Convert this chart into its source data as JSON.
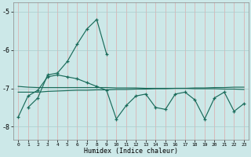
{
  "xlabel": "Humidex (Indice chaleur)",
  "bg_color": "#cce8e8",
  "grid_color": "#aacccc",
  "line_color": "#1a6b5a",
  "xlim": [
    -0.5,
    23.5
  ],
  "ylim": [
    -8.35,
    -4.75
  ],
  "yticks": [
    -8,
    -7,
    -6,
    -5
  ],
  "xticks": [
    0,
    1,
    2,
    3,
    4,
    5,
    6,
    7,
    8,
    9,
    10,
    11,
    12,
    13,
    14,
    15,
    16,
    17,
    18,
    19,
    20,
    21,
    22,
    23
  ],
  "series1_x": [
    1,
    2,
    3,
    4,
    5,
    6,
    7,
    8,
    9
  ],
  "series1_y": [
    -7.5,
    -7.25,
    -6.65,
    -6.6,
    -6.3,
    -5.85,
    -5.45,
    -5.2,
    -6.1
  ],
  "series2": [
    -7.75,
    -7.2,
    -7.05,
    -6.7,
    -6.65,
    -6.7,
    -6.75,
    -6.85,
    -6.95,
    -7.05,
    -7.8,
    -7.45,
    -7.2,
    -7.15,
    -7.5,
    -7.55,
    -7.15,
    -7.1,
    -7.3,
    -7.8,
    -7.25,
    -7.1,
    -7.6,
    -7.4
  ],
  "series3": [
    -6.95,
    -6.97,
    -6.98,
    -6.98,
    -6.98,
    -6.98,
    -6.98,
    -6.98,
    -6.98,
    -6.98,
    -6.99,
    -6.99,
    -6.99,
    -7.0,
    -7.0,
    -7.0,
    -7.0,
    -7.0,
    -7.01,
    -7.01,
    -7.01,
    -7.02,
    -7.02,
    -7.03
  ],
  "series4": [
    -7.1,
    -7.1,
    -7.1,
    -7.08,
    -7.07,
    -7.06,
    -7.05,
    -7.05,
    -7.04,
    -7.04,
    -7.03,
    -7.03,
    -7.02,
    -7.02,
    -7.01,
    -7.01,
    -7.0,
    -7.0,
    -6.99,
    -6.99,
    -6.98,
    -6.98,
    -6.97,
    -6.97
  ]
}
